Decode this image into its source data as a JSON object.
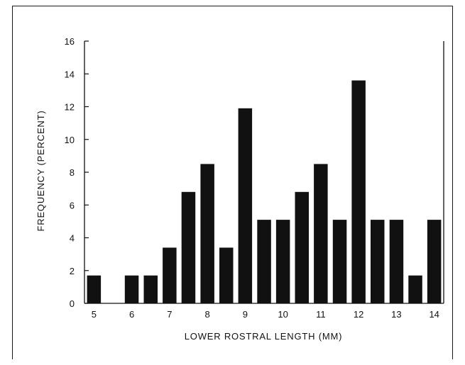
{
  "chart_data": {
    "type": "bar",
    "title": "",
    "xlabel": "LOWER ROSTRAL LENGTH (MM)",
    "ylabel": "FREQUENCY (PERCENT)",
    "x_ticks": [
      "5",
      "6",
      "7",
      "8",
      "9",
      "10",
      "11",
      "12",
      "13",
      "14"
    ],
    "y_ticks": [
      "0",
      "2",
      "4",
      "6",
      "8",
      "10",
      "12",
      "14",
      "16"
    ],
    "ylim": [
      0,
      16
    ],
    "xlim": [
      4.75,
      14.25
    ],
    "grid": false,
    "legend": "none",
    "bar_color": "#111111",
    "x": [
      5.0,
      5.5,
      6.0,
      6.5,
      7.0,
      7.5,
      8.0,
      8.5,
      9.0,
      9.5,
      10.0,
      10.5,
      11.0,
      11.5,
      12.0,
      12.5,
      13.0,
      13.5,
      14.0
    ],
    "values": [
      1.7,
      0,
      1.7,
      1.7,
      3.4,
      6.8,
      8.5,
      3.4,
      11.9,
      5.1,
      5.1,
      6.8,
      8.5,
      5.1,
      13.6,
      5.1,
      5.1,
      1.7,
      5.1
    ]
  }
}
